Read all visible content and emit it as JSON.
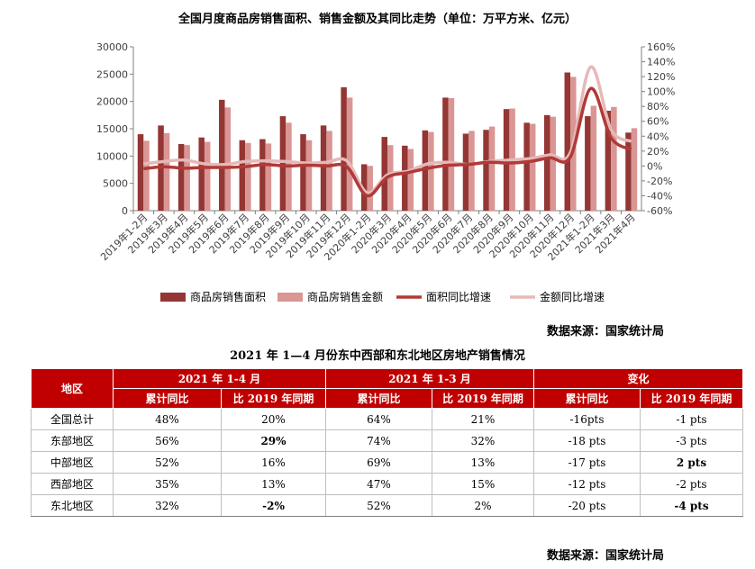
{
  "chart_title": "全国月度商品房销售面积、销售金额及其同比走势（单位：万平方米、亿元）",
  "source_label": "数据来源：国家统计局",
  "chart_data": {
    "type": "bar",
    "title": "全国月度商品房销售面积、销售金额及其同比走势（单位：万平方米、亿元）",
    "categories": [
      "2019年1-2月",
      "2019年3月",
      "2019年4月",
      "2019年5月",
      "2019年6月",
      "2019年7月",
      "2019年8月",
      "2019年9月",
      "2019年10月",
      "2019年11月",
      "2019年12月",
      "2020年1-2月",
      "2020年3月",
      "2020年4月",
      "2020年5月",
      "2020年6月",
      "2020年7月",
      "2020年8月",
      "2020年9月",
      "2020年10月",
      "2020年11月",
      "2020年12月",
      "2021年1-2月",
      "2021年3月",
      "2021年4月"
    ],
    "ylim": [
      0,
      30000
    ],
    "yticks": [
      "0",
      "5000",
      "10000",
      "15000",
      "20000",
      "25000",
      "30000"
    ],
    "y2lim": [
      -60,
      160
    ],
    "y2ticks": [
      "-60%",
      "-40%",
      "-20%",
      "0%",
      "20%",
      "40%",
      "60%",
      "80%",
      "100%",
      "120%",
      "140%",
      "160%"
    ],
    "legend_position": "bottom",
    "series": [
      {
        "name": "商品房销售面积",
        "kind": "bar",
        "axis": "left",
        "color": "#943634",
        "values": [
          14000,
          15600,
          12200,
          13400,
          20300,
          12900,
          13100,
          17300,
          14000,
          15600,
          22600,
          8500,
          13500,
          11900,
          14700,
          20700,
          14100,
          14800,
          18600,
          16100,
          17500,
          25300,
          17300,
          18300,
          14300
        ]
      },
      {
        "name": "商品房销售金额",
        "kind": "bar",
        "axis": "left",
        "color": "#d99694",
        "values": [
          12800,
          14200,
          12000,
          12600,
          18900,
          12400,
          12300,
          16100,
          12900,
          14600,
          20700,
          8200,
          12000,
          11300,
          14400,
          20600,
          14600,
          15400,
          18700,
          15900,
          17200,
          24500,
          19200,
          19000,
          15100
        ]
      },
      {
        "name": "面积同比增速",
        "kind": "line",
        "axis": "right",
        "color": "#b03a38",
        "values": [
          -3.6,
          -1,
          -3,
          -2,
          -2,
          -1,
          2,
          0,
          1,
          0,
          -1,
          -39.9,
          -15,
          -9,
          -3,
          1,
          2,
          5,
          4,
          6,
          11,
          12,
          104,
          38,
          22
        ]
      },
      {
        "name": "金额同比增速",
        "kind": "line",
        "axis": "right",
        "color": "#e6b9b8",
        "values": [
          2.8,
          6,
          8,
          3,
          2,
          6,
          7,
          6,
          4,
          5,
          7,
          -35.9,
          -12,
          -7,
          3,
          5,
          2,
          6,
          8,
          10,
          15,
          18,
          133,
          49,
          33
        ]
      }
    ]
  },
  "table": {
    "title": "2021 年 1—4 月份东中西部和东北地区房地产销售情况",
    "region_header": "地区",
    "groups": [
      "2021 年 1-4 月",
      "2021 年 1-3 月",
      "变化"
    ],
    "subheaders": [
      "累计同比",
      "比 2019 年同期",
      "累计同比",
      "比 2019 年同期",
      "累计同比",
      "比 2019 年同期"
    ],
    "rows": [
      [
        "全国总计",
        "48%",
        "20%",
        "64%",
        "21%",
        "-16pts",
        "-1 pts"
      ],
      [
        "东部地区",
        "56%",
        "29%",
        "74%",
        "32%",
        "-18 pts",
        "-3 pts"
      ],
      [
        "中部地区",
        "52%",
        "16%",
        "69%",
        "13%",
        "-17 pts",
        "2 pts"
      ],
      [
        "西部地区",
        "35%",
        "13%",
        "47%",
        "15%",
        "-12 pts",
        "-2 pts"
      ],
      [
        "东北地区",
        "32%",
        "-2%",
        "52%",
        "2%",
        "-20 pts",
        "-4 pts"
      ]
    ],
    "bold_cells": [
      "1.2",
      "2.6",
      "4.2",
      "4.6"
    ]
  }
}
